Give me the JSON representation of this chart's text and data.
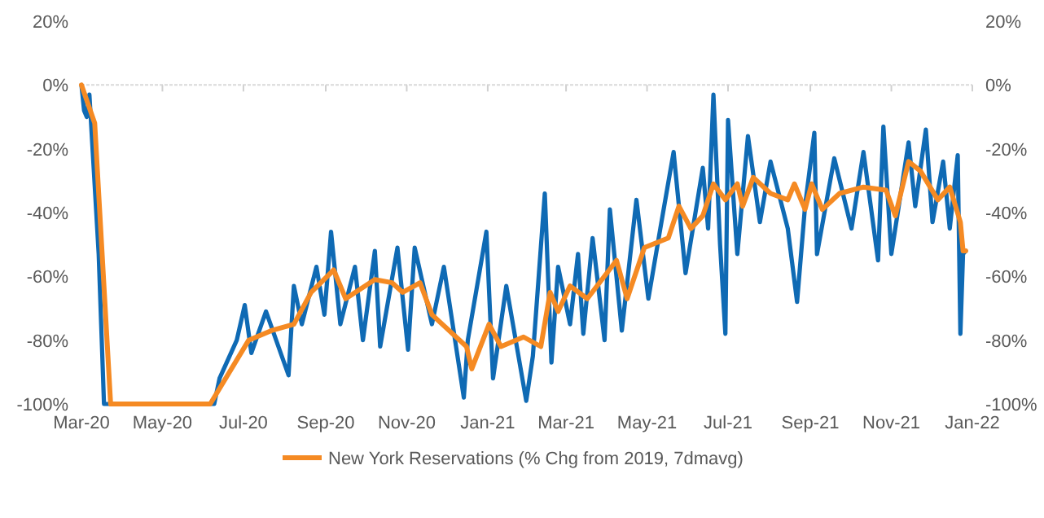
{
  "chart_data": {
    "type": "line",
    "xlim": [
      "2020-03-01",
      "2022-01-01"
    ],
    "xticks": [
      {
        "value": "2020-03-01",
        "label": "Mar-20"
      },
      {
        "value": "2020-05-01",
        "label": "May-20"
      },
      {
        "value": "2020-07-01",
        "label": "Jul-20"
      },
      {
        "value": "2020-09-01",
        "label": "Sep-20"
      },
      {
        "value": "2020-11-01",
        "label": "Nov-20"
      },
      {
        "value": "2021-01-01",
        "label": "Jan-21"
      },
      {
        "value": "2021-03-01",
        "label": "Mar-21"
      },
      {
        "value": "2021-05-01",
        "label": "May-21"
      },
      {
        "value": "2021-07-01",
        "label": "Jul-21"
      },
      {
        "value": "2021-09-01",
        "label": "Sep-21"
      },
      {
        "value": "2021-11-01",
        "label": "Nov-21"
      },
      {
        "value": "2022-01-01",
        "label": "Jan-22"
      }
    ],
    "ylim": [
      -100,
      20
    ],
    "yticks": [
      {
        "value": -100,
        "label": "-100%"
      },
      {
        "value": -80,
        "label": "-80%"
      },
      {
        "value": -60,
        "label": "-60%"
      },
      {
        "value": -40,
        "label": "-40%"
      },
      {
        "value": -20,
        "label": "-20%"
      },
      {
        "value": 0,
        "label": "0%"
      },
      {
        "value": 20,
        "label": "20%"
      }
    ],
    "y2lim": [
      -100,
      20
    ],
    "y2ticks": [
      {
        "value": -100,
        "label": "-100%"
      },
      {
        "value": -80,
        "label": "-80%"
      },
      {
        "value": -60,
        "label": "-60%"
      },
      {
        "value": -40,
        "label": "-40%"
      },
      {
        "value": -20,
        "label": "-20%"
      },
      {
        "value": 0,
        "label": "0%"
      },
      {
        "value": 20,
        "label": "20%"
      }
    ],
    "ref_lines": [
      {
        "axis": "y",
        "value": 0,
        "color": "#d9d9d9",
        "line_style": "dotted"
      }
    ],
    "grid": false,
    "legend": "bottom",
    "line_style": "solid",
    "series": [
      {
        "color": "#0f6ab4",
        "x": [
          "2020-03-01",
          "2020-03-03",
          "2020-03-05",
          "2020-03-07",
          "2020-03-14",
          "2020-03-18",
          "2020-06-09",
          "2020-06-13",
          "2020-06-26",
          "2020-07-02",
          "2020-07-07",
          "2020-07-18",
          "2020-08-04",
          "2020-08-08",
          "2020-08-14",
          "2020-08-25",
          "2020-08-31",
          "2020-09-05",
          "2020-09-12",
          "2020-09-23",
          "2020-09-29",
          "2020-10-08",
          "2020-10-12",
          "2020-10-25",
          "2020-11-02",
          "2020-11-07",
          "2020-11-20",
          "2020-11-29",
          "2020-12-14",
          "2020-12-17",
          "2020-12-31",
          "2021-01-05",
          "2021-01-15",
          "2021-01-30",
          "2021-02-04",
          "2021-02-13",
          "2021-02-18",
          "2021-02-23",
          "2021-03-04",
          "2021-03-10",
          "2021-03-14",
          "2021-03-21",
          "2021-03-30",
          "2021-04-03",
          "2021-04-12",
          "2021-04-23",
          "2021-05-02",
          "2021-05-11",
          "2021-05-21",
          "2021-05-30",
          "2021-06-12",
          "2021-06-16",
          "2021-06-20",
          "2021-06-25",
          "2021-06-29",
          "2021-07-01",
          "2021-07-08",
          "2021-07-16",
          "2021-07-25",
          "2021-08-02",
          "2021-08-15",
          "2021-08-22",
          "2021-08-28",
          "2021-09-04",
          "2021-09-06",
          "2021-09-19",
          "2021-10-02",
          "2021-10-11",
          "2021-10-22",
          "2021-10-26",
          "2021-11-01",
          "2021-11-14",
          "2021-11-19",
          "2021-11-27",
          "2021-12-02",
          "2021-12-10",
          "2021-12-15",
          "2021-12-21",
          "2021-12-23",
          "2021-12-25",
          "2021-12-27"
        ],
        "values": [
          0,
          -8,
          -10,
          -3,
          -53,
          -100,
          -100,
          -92,
          -80,
          -69,
          -84,
          -71,
          -91,
          -63,
          -75,
          -57,
          -72,
          -46,
          -75,
          -57,
          -80,
          -52,
          -82,
          -51,
          -83,
          -51,
          -75,
          -57,
          -98,
          -80,
          -46,
          -92,
          -63,
          -99,
          -85,
          -34,
          -87,
          -57,
          -75,
          -53,
          -78,
          -48,
          -80,
          -39,
          -77,
          -36,
          -67,
          -45,
          -21,
          -59,
          -26,
          -45,
          -3,
          -50,
          -78,
          -11,
          -53,
          -16,
          -43,
          -24,
          -45,
          -68,
          -38,
          -15,
          -53,
          -23,
          -45,
          -21,
          -55,
          -13,
          -53,
          -18,
          -38,
          -14,
          -43,
          -24,
          -45,
          -22,
          -78,
          -53,
          -52
        ]
      },
      {
        "name": "New York Reservations (% Chg from 2019, 7dmavg)",
        "color": "#f58a23",
        "x": [
          "2020-03-01",
          "2020-03-11",
          "2020-03-23",
          "2020-06-06",
          "2020-07-05",
          "2020-07-22",
          "2020-08-08",
          "2020-08-21",
          "2020-09-07",
          "2020-09-16",
          "2020-10-08",
          "2020-10-21",
          "2020-10-29",
          "2020-11-11",
          "2020-11-20",
          "2020-12-16",
          "2020-12-20",
          "2021-01-02",
          "2021-01-11",
          "2021-01-28",
          "2021-02-10",
          "2021-02-17",
          "2021-02-23",
          "2021-03-04",
          "2021-03-17",
          "2021-04-08",
          "2021-04-16",
          "2021-04-29",
          "2021-05-17",
          "2021-05-25",
          "2021-06-03",
          "2021-06-12",
          "2021-06-20",
          "2021-06-29",
          "2021-07-08",
          "2021-07-12",
          "2021-07-20",
          "2021-08-02",
          "2021-08-15",
          "2021-08-20",
          "2021-08-28",
          "2021-09-02",
          "2021-09-10",
          "2021-09-23",
          "2021-10-11",
          "2021-10-28",
          "2021-11-04",
          "2021-11-14",
          "2021-11-23",
          "2021-12-06",
          "2021-12-15",
          "2021-12-23",
          "2021-12-25",
          "2021-12-27"
        ],
        "values": [
          0,
          -12,
          -100,
          -100,
          -80,
          -77,
          -75,
          -65,
          -58,
          -67,
          -61,
          -62,
          -65,
          -62,
          -72,
          -82,
          -89,
          -75,
          -82,
          -79,
          -82,
          -65,
          -71,
          -63,
          -67,
          -55,
          -67,
          -51,
          -48,
          -38,
          -45,
          -41,
          -31,
          -36,
          -31,
          -38,
          -29,
          -34,
          -36,
          -31,
          -39,
          -31,
          -39,
          -34,
          -32,
          -33,
          -41,
          -24,
          -27,
          -36,
          -32,
          -43,
          -52,
          -52
        ]
      }
    ]
  }
}
